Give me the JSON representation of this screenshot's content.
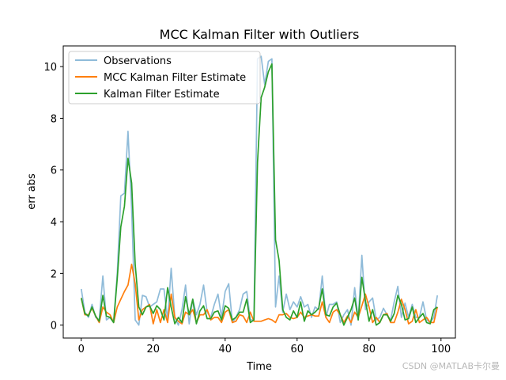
{
  "chart_data": {
    "type": "line",
    "title": "MCC Kalman Filter with Outliers",
    "xlabel": "Time",
    "ylabel": "err abs",
    "xlim": [
      -5,
      104
    ],
    "ylim": [
      -0.5,
      10.8
    ],
    "xticks": [
      0,
      20,
      40,
      60,
      80,
      100
    ],
    "yticks": [
      0,
      2,
      4,
      6,
      8,
      10
    ],
    "legend_position": "upper-left",
    "x": [
      0,
      1,
      2,
      3,
      4,
      5,
      6,
      7,
      8,
      9,
      10,
      11,
      12,
      13,
      14,
      15,
      16,
      17,
      18,
      19,
      20,
      21,
      22,
      23,
      24,
      25,
      26,
      27,
      28,
      29,
      30,
      31,
      32,
      33,
      34,
      35,
      36,
      37,
      38,
      39,
      40,
      41,
      42,
      43,
      44,
      45,
      46,
      47,
      48,
      49,
      50,
      51,
      52,
      53,
      54,
      55,
      56,
      57,
      58,
      59,
      60,
      61,
      62,
      63,
      64,
      65,
      66,
      67,
      68,
      69,
      70,
      71,
      72,
      73,
      74,
      75,
      76,
      77,
      78,
      79,
      80,
      81,
      82,
      83,
      84,
      85,
      86,
      87,
      88,
      89,
      90,
      91,
      92,
      93,
      94,
      95,
      96,
      97,
      98,
      99
    ],
    "series": [
      {
        "name": "Observations",
        "color": "#1f77b4",
        "opacity": 0.5,
        "values": [
          1.4,
          0.5,
          0.3,
          0.8,
          0.3,
          0.2,
          1.9,
          0.2,
          0.3,
          0.1,
          2.0,
          5.0,
          5.1,
          7.5,
          4.5,
          0.2,
          0.0,
          1.15,
          1.1,
          0.7,
          0.8,
          0.9,
          1.4,
          1.4,
          0.2,
          2.2,
          0.3,
          0.0,
          0.6,
          1.55,
          0.05,
          1.0,
          0.4,
          0.8,
          1.55,
          0.5,
          0.3,
          0.8,
          1.2,
          0.3,
          1.3,
          1.6,
          0.1,
          0.3,
          0.6,
          1.2,
          1.3,
          0.2,
          0.2,
          10.3,
          10.4,
          9.3,
          10.2,
          10.3,
          0.7,
          1.9,
          0.5,
          1.2,
          0.6,
          0.9,
          0.7,
          1.1,
          0.7,
          0.8,
          0.3,
          0.7,
          0.6,
          1.9,
          0.3,
          0.8,
          0.8,
          0.9,
          0.1,
          0.4,
          0.6,
          0.0,
          1.45,
          0.2,
          2.7,
          0.6,
          0.9,
          1.05,
          0.2,
          0.3,
          0.65,
          0.4,
          0.2,
          0.9,
          1.5,
          0.3,
          0.85,
          0.3,
          0.8,
          0.3,
          0.3,
          0.9,
          0.2,
          0.1,
          0.3,
          1.15
        ]
      },
      {
        "name": "MCC Kalman Filter Estimate",
        "color": "#ff7f0e",
        "opacity": 1,
        "values": [
          1.05,
          0.4,
          0.4,
          0.65,
          0.35,
          0.1,
          0.7,
          0.5,
          0.4,
          0.1,
          0.7,
          1.0,
          1.3,
          1.55,
          2.35,
          1.6,
          0.2,
          0.6,
          0.7,
          0.8,
          0.05,
          0.6,
          0.1,
          0.6,
          0.1,
          1.2,
          0.3,
          0.15,
          0.05,
          0.5,
          0.4,
          0.6,
          0.1,
          0.4,
          0.4,
          0.6,
          0.2,
          0.3,
          0.3,
          0.1,
          0.5,
          0.6,
          0.1,
          0.15,
          0.4,
          0.35,
          0.1,
          0.5,
          0.15,
          0.15,
          0.15,
          0.2,
          0.25,
          0.2,
          0.1,
          0.4,
          0.4,
          0.45,
          0.3,
          0.25,
          0.3,
          0.5,
          0.3,
          0.35,
          0.4,
          0.35,
          0.35,
          0.9,
          0.3,
          0.1,
          0.5,
          0.6,
          0.4,
          0.1,
          0.35,
          0.1,
          0.5,
          0.3,
          0.75,
          1.2,
          0.7,
          0.1,
          0.3,
          0.1,
          0.4,
          0.45,
          0.1,
          0.1,
          0.5,
          1.0,
          0.6,
          0.05,
          0.15,
          0.6,
          0.1,
          0.2,
          0.3,
          0.1,
          0.1,
          0.7
        ]
      },
      {
        "name": "Kalman Filter Estimate",
        "color": "#2ca02c",
        "opacity": 1,
        "values": [
          1.05,
          0.45,
          0.35,
          0.7,
          0.35,
          0.15,
          1.15,
          0.35,
          0.3,
          0.1,
          1.8,
          3.8,
          4.6,
          6.45,
          5.5,
          2.35,
          0.7,
          0.4,
          0.7,
          0.75,
          0.45,
          0.75,
          0.6,
          0.2,
          1.45,
          0.7,
          0.05,
          0.3,
          0.1,
          1.1,
          0.4,
          1.0,
          0.05,
          0.55,
          0.75,
          0.25,
          0.25,
          0.5,
          0.55,
          0.2,
          0.75,
          0.65,
          0.2,
          0.3,
          0.5,
          0.5,
          1.0,
          0.1,
          0.2,
          6.3,
          8.8,
          9.2,
          9.8,
          10.1,
          3.3,
          2.5,
          0.6,
          0.3,
          0.2,
          0.55,
          0.3,
          0.9,
          0.15,
          0.55,
          0.4,
          0.5,
          0.65,
          1.4,
          0.4,
          0.35,
          0.7,
          0.85,
          0.4,
          0.0,
          0.3,
          0.6,
          1.05,
          0.2,
          1.85,
          0.95,
          0.15,
          0.6,
          0.0,
          0.1,
          0.4,
          0.4,
          0.15,
          0.45,
          1.15,
          0.8,
          0.2,
          0.25,
          0.7,
          0.1,
          0.3,
          0.45,
          0.1,
          0.05,
          0.6,
          0.7
        ]
      }
    ]
  },
  "watermark": "CSDN @MATLAB卡尔曼"
}
